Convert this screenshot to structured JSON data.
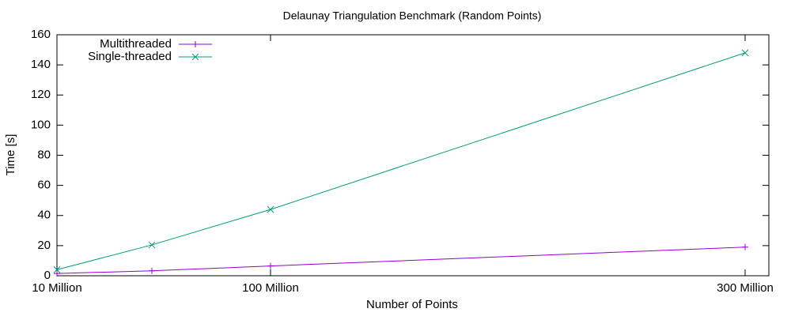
{
  "chart_data": {
    "type": "line",
    "title": "Delaunay Triangulation Benchmark (Random Points)",
    "x_label": "Number of Points",
    "y_label": "Time [s]",
    "x": [
      10000000,
      50000000,
      100000000,
      300000000
    ],
    "series": [
      {
        "name": "Multithreaded",
        "color": "#9400d3",
        "marker": "plus",
        "values": [
          1.5,
          3.3,
          6.5,
          19
        ]
      },
      {
        "name": "Single-threaded",
        "color": "#009e73",
        "marker": "cross",
        "values": [
          4,
          20.5,
          44,
          148
        ]
      }
    ],
    "xlim": [
      10000000,
      310000000
    ],
    "xticks": [
      {
        "value": 10000000,
        "label": "10 Million"
      },
      {
        "value": 100000000,
        "label": "100 Million"
      },
      {
        "value": 300000000,
        "label": "300 Million"
      }
    ],
    "ylim": [
      0,
      160
    ],
    "yticks": [
      0,
      20,
      40,
      60,
      80,
      100,
      120,
      140,
      160
    ],
    "legend": "top-left"
  }
}
